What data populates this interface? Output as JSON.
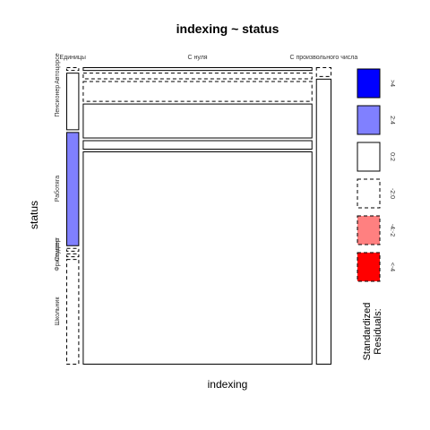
{
  "chart_data": {
    "type": "mosaic",
    "title": "indexing ~ status",
    "xlabel": "indexing",
    "ylabel": "status",
    "x_categories": [
      "Единицы",
      "С нуля",
      "С произвольного числа"
    ],
    "y_categories": [
      "Автоцорсе",
      "Пенсионер",
      "Работяга",
      "Студент",
      "Фрилансер",
      "Школьник"
    ],
    "column_widths": [
      0.05,
      0.89,
      0.06
    ],
    "cells": [
      {
        "x": "Единицы",
        "y": "Автоцорсе",
        "share": 0.01,
        "residual_band": "-2:0"
      },
      {
        "x": "Единицы",
        "y": "Пенсионер",
        "share": 0.2,
        "residual_band": "0:2"
      },
      {
        "x": "Единицы",
        "y": "Работяга",
        "share": 0.4,
        "residual_band": "2:4"
      },
      {
        "x": "Единицы",
        "y": "Студент",
        "share": 0.01,
        "residual_band": "-2:0"
      },
      {
        "x": "Единицы",
        "y": "Фрилансер",
        "share": 0.01,
        "residual_band": "-2:0"
      },
      {
        "x": "Единицы",
        "y": "Школьник",
        "share": 0.37,
        "residual_band": "-2:0"
      },
      {
        "x": "С нуля",
        "y": "Автоцорсе",
        "share": 0.01,
        "residual_band": "0:2"
      },
      {
        "x": "С нуля",
        "y": "Пенсионер",
        "share": 0.02,
        "residual_band": "-2:0"
      },
      {
        "x": "С нуля",
        "y": "Работяга",
        "share": 0.07,
        "residual_band": "-2:0"
      },
      {
        "x": "С нуля",
        "y": "Студент",
        "share": 0.12,
        "residual_band": "0:2"
      },
      {
        "x": "С нуля",
        "y": "Фрилансер",
        "share": 0.03,
        "residual_band": "0:2"
      },
      {
        "x": "С нуля",
        "y": "Школьник",
        "share": 0.75,
        "residual_band": "0:2"
      },
      {
        "x": "С произвольного числа",
        "y": "Автоцорсе",
        "share": 0.03,
        "residual_band": "-2:0"
      },
      {
        "x": "С произвольного числа",
        "y": "Пенсионер",
        "share": 0.97,
        "residual_band": "0:2"
      }
    ],
    "legend": {
      "title": "Standardized Residuals:",
      "placement": "right",
      "bands": [
        {
          "label": ">4",
          "color": "#0000FF",
          "dashed": false
        },
        {
          "label": "2:4",
          "color": "#8080FF",
          "dashed": false
        },
        {
          "label": "0:2",
          "color": "#FFFFFF",
          "dashed": false
        },
        {
          "label": "-2:0",
          "color": "#FFFFFF",
          "dashed": true
        },
        {
          "label": "-4:-2",
          "color": "#FF8080",
          "dashed": true
        },
        {
          "label": "<-4",
          "color": "#FF0000",
          "dashed": true
        }
      ]
    }
  }
}
